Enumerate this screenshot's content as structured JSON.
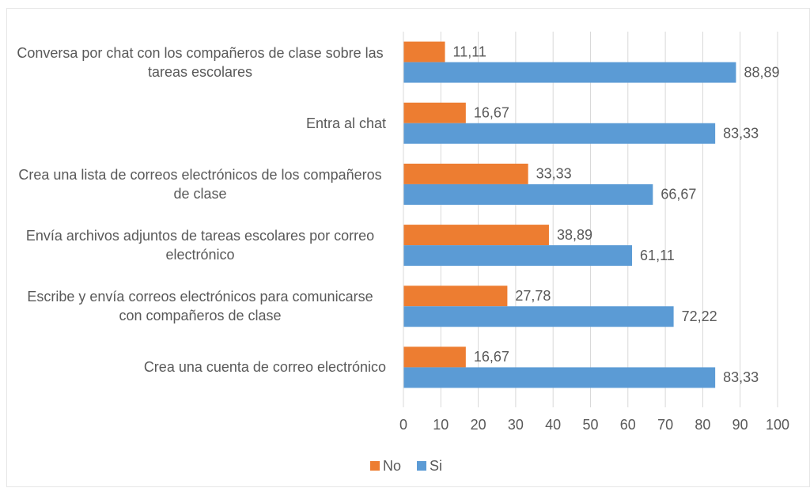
{
  "chart_data": {
    "type": "bar",
    "orientation": "horizontal",
    "categories": [
      "Conversa por chat con los compañeros de clase sobre las tareas escolares",
      "Entra al chat",
      "Crea una lista de correos electrónicos de los compañeros de clase",
      "Envía archivos adjuntos de tareas escolares por correo electrónico",
      "Escribe y envía correos electrónicos para comunicarse con compañeros de clase",
      "Crea una cuenta de correo electrónico"
    ],
    "series": [
      {
        "name": "No",
        "color": "#ed7d31",
        "values": [
          11.11,
          16.67,
          33.33,
          38.89,
          27.78,
          16.67
        ],
        "value_labels": [
          "11,11",
          "16,67",
          "33,33",
          "38,89",
          "27,78",
          "16,67"
        ]
      },
      {
        "name": "Si",
        "color": "#5b9bd5",
        "values": [
          88.89,
          83.33,
          66.67,
          61.11,
          72.22,
          83.33
        ],
        "value_labels": [
          "88,89",
          "83,33",
          "66,67",
          "61,11",
          "72,22",
          "83,33"
        ]
      }
    ],
    "xlim": [
      0,
      100
    ],
    "xticks": [
      0,
      10,
      20,
      30,
      40,
      50,
      60,
      70,
      80,
      90,
      100
    ],
    "grid": true,
    "legend": "bottom"
  }
}
